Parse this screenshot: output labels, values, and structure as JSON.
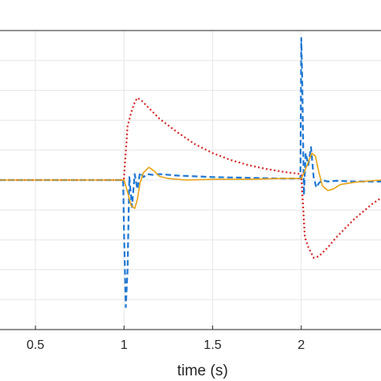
{
  "chart_data": {
    "type": "line",
    "title": "",
    "xlabel": "time (s)",
    "ylabel": "",
    "xlim": [
      0.3,
      2.45
    ],
    "ylim": [
      -1.0,
      1.0
    ],
    "grid": true,
    "x_ticks": [
      {
        "value": 0.5,
        "label": "0.5"
      },
      {
        "value": 1,
        "label": "1"
      },
      {
        "value": 1.5,
        "label": "1.5"
      },
      {
        "value": 2,
        "label": "2"
      }
    ],
    "y_gridlines": [
      -0.8,
      -0.6,
      -0.4,
      -0.2,
      0,
      0.2,
      0.4,
      0.6,
      0.8
    ],
    "series": [
      {
        "style": "dotted",
        "color": "#d62728",
        "x": [
          0.3,
          0.999,
          1.0,
          1.02,
          1.04,
          1.06,
          1.075,
          1.1,
          1.15,
          1.2,
          1.3,
          1.4,
          1.5,
          1.6,
          1.7,
          1.8,
          1.9,
          2.0,
          2.0,
          2.02,
          2.04,
          2.07,
          2.1,
          2.15,
          2.2,
          2.3,
          2.4,
          2.45
        ],
        "y": [
          0,
          0,
          0.02,
          0.36,
          0.45,
          0.52,
          0.55,
          0.53,
          0.47,
          0.41,
          0.32,
          0.24,
          0.18,
          0.135,
          0.1,
          0.075,
          0.055,
          0.04,
          0.04,
          -0.38,
          -0.45,
          -0.52,
          -0.51,
          -0.45,
          -0.38,
          -0.26,
          -0.16,
          -0.12
        ]
      },
      {
        "style": "dashed",
        "color": "#2078d4",
        "x": [
          0.3,
          0.995,
          1.0,
          1.01,
          1.02,
          1.03,
          1.045,
          1.06,
          1.075,
          1.09,
          1.11,
          1.13,
          1.16,
          1.2,
          1.3,
          1.5,
          1.7,
          1.9,
          1.995,
          2.0,
          2.005,
          2.015,
          2.025,
          2.04,
          2.055,
          2.07,
          2.085,
          2.1,
          2.12,
          2.15,
          2.2,
          2.3,
          2.45
        ],
        "y": [
          0,
          0,
          -0.35,
          -0.85,
          -0.6,
          0.02,
          -0.18,
          0.04,
          -0.06,
          0.05,
          0.02,
          0.04,
          0.035,
          0.04,
          0.03,
          0.02,
          0.015,
          0.01,
          0.01,
          0.95,
          0.7,
          -0.1,
          0.18,
          0.1,
          0.22,
          0.02,
          -0.05,
          -0.02,
          0.0,
          -0.01,
          -0.005,
          -0.01,
          -0.01
        ]
      },
      {
        "style": "solid",
        "color": "#e8a317",
        "x": [
          0.3,
          1.0,
          1.02,
          1.04,
          1.06,
          1.075,
          1.09,
          1.11,
          1.14,
          1.17,
          1.2,
          1.25,
          1.35,
          1.5,
          1.7,
          1.9,
          2.0,
          2.02,
          2.04,
          2.06,
          2.08,
          2.1,
          2.12,
          2.15,
          2.18,
          2.22,
          2.3,
          2.45
        ],
        "y": [
          0,
          0,
          -0.08,
          -0.17,
          -0.19,
          -0.13,
          -0.02,
          0.05,
          0.085,
          0.06,
          0.025,
          0.01,
          0.0,
          0.005,
          0.005,
          0.01,
          0.01,
          0.06,
          0.12,
          0.18,
          0.16,
          0.05,
          -0.04,
          -0.07,
          -0.06,
          -0.03,
          -0.015,
          0.0
        ]
      }
    ]
  }
}
